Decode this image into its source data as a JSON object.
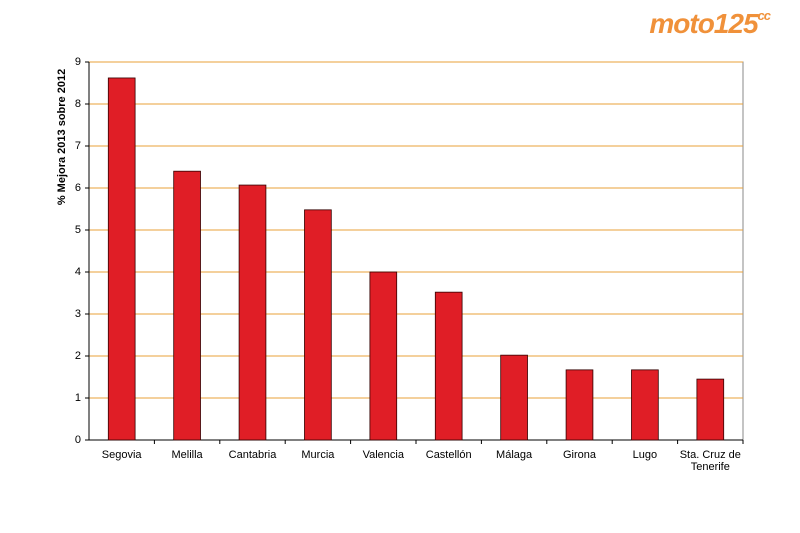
{
  "logo": {
    "name": "moto125",
    "suffix": "cc"
  },
  "chart_data": {
    "type": "bar",
    "y_label": "% Mejora 2013 sobre 2012",
    "categories": [
      "Segovia",
      "Melilla",
      "Cantabria",
      "Murcia",
      "Valencia",
      "Castellón",
      "Málaga",
      "Girona",
      "Lugo",
      "Sta. Cruz de Tenerife"
    ],
    "values": [
      8.62,
      6.4,
      6.07,
      5.48,
      4.0,
      3.52,
      2.02,
      1.67,
      1.67,
      1.45
    ],
    "color": "#e01e26",
    "ylim": [
      0,
      9
    ],
    "yticks": [
      0,
      1,
      2,
      3,
      4,
      5,
      6,
      7,
      8,
      9
    ],
    "grid": true
  }
}
